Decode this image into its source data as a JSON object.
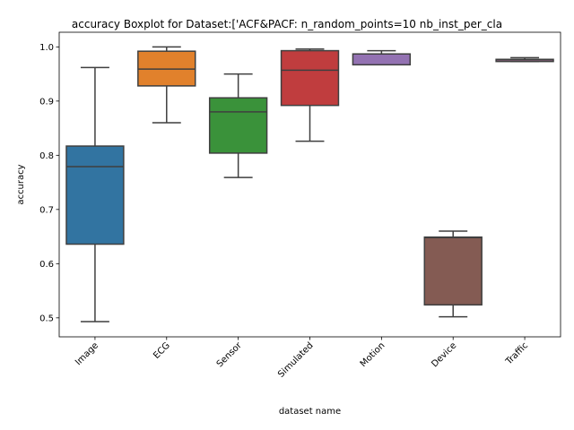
{
  "chart_data": {
    "type": "boxplot",
    "title": "accuracy Boxplot for Dataset:['ACF&PACF: n_random_points=10 nb_inst_per_cla",
    "xlabel": "dataset name",
    "ylabel": "accuracy",
    "ylim": [
      0.465,
      1.027
    ],
    "yticks": [
      0.5,
      0.6,
      0.7,
      0.8,
      0.9,
      1.0
    ],
    "ytick_labels": [
      "0.5",
      "0.6",
      "0.7",
      "0.8",
      "0.9",
      "1.0"
    ],
    "grid": false,
    "categories": [
      "Image",
      "ECG",
      "Sensor",
      "Simulated",
      "Motion",
      "Device",
      "Traffic"
    ],
    "boxes": [
      {
        "category": "Image",
        "whisker_low": 0.493,
        "q1": 0.636,
        "median": 0.779,
        "q3": 0.817,
        "whisker_high": 0.962,
        "color": "#3274a1"
      },
      {
        "category": "ECG",
        "whisker_low": 0.86,
        "q1": 0.928,
        "median": 0.959,
        "q3": 0.992,
        "whisker_high": 1.0,
        "color": "#e1812c"
      },
      {
        "category": "Sensor",
        "whisker_low": 0.759,
        "q1": 0.804,
        "median": 0.88,
        "q3": 0.906,
        "whisker_high": 0.95,
        "color": "#3a923a"
      },
      {
        "category": "Simulated",
        "whisker_low": 0.826,
        "q1": 0.892,
        "median": 0.957,
        "q3": 0.993,
        "whisker_high": 0.996,
        "color": "#c03d3e"
      },
      {
        "category": "Motion",
        "whisker_low": 0.967,
        "q1": 0.967,
        "median": 0.987,
        "q3": 0.987,
        "whisker_high": 0.993,
        "color": "#9372b2"
      },
      {
        "category": "Device",
        "whisker_low": 0.502,
        "q1": 0.524,
        "median": 0.648,
        "q3": 0.649,
        "whisker_high": 0.66,
        "color": "#845b53"
      },
      {
        "category": "Traffic",
        "whisker_low": 0.973,
        "q1": 0.973,
        "median": 0.976,
        "q3": 0.977,
        "whisker_high": 0.98,
        "color": "#d684bd"
      }
    ]
  }
}
